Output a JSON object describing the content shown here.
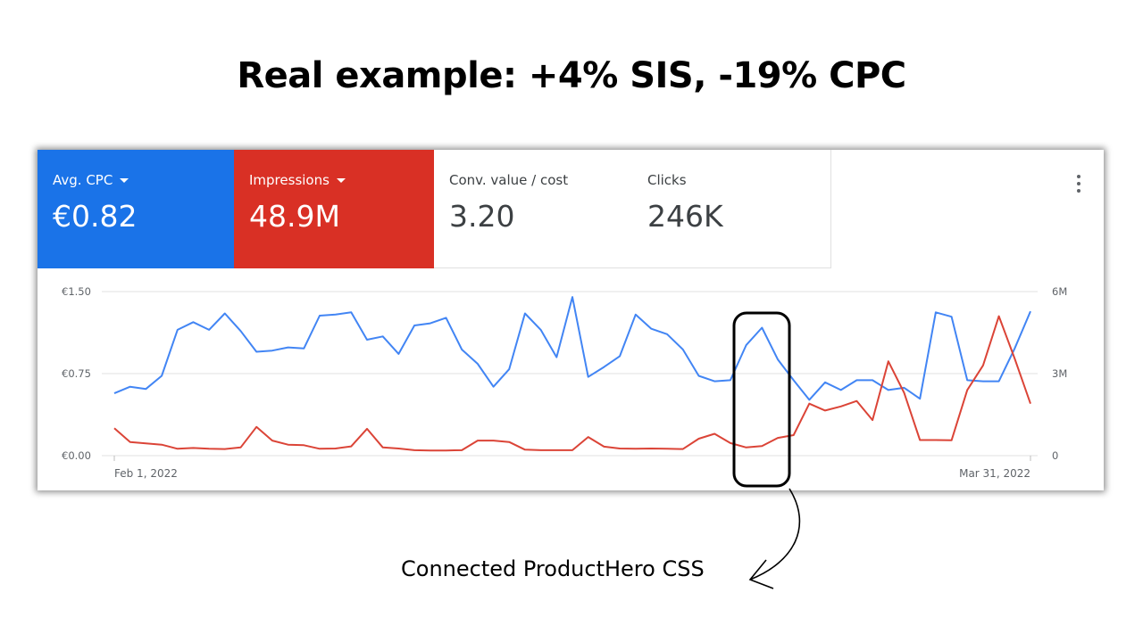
{
  "slide": {
    "title": "Real example: +4% SIS, -19% CPC",
    "annotation": "Connected ProductHero CSS"
  },
  "tiles": [
    {
      "label": "Avg. CPC",
      "value": "€0.82",
      "dropdown": true,
      "color": "#1a73e8"
    },
    {
      "label": "Impressions",
      "value": "48.9M",
      "dropdown": true,
      "color": "#d93025"
    },
    {
      "label": "Conv. value / cost",
      "value": "3.20",
      "dropdown": false
    },
    {
      "label": "Clicks",
      "value": "246K",
      "dropdown": false
    }
  ],
  "menu_icon": "more-vert-icon",
  "chart_data": {
    "type": "line",
    "x_start_label": "Feb 1, 2022",
    "x_end_label": "Mar 31, 2022",
    "grid": true,
    "left_axis": {
      "ticks": [
        "€1.50",
        "€0.75",
        "€0.00"
      ],
      "range": [
        0,
        1.5
      ]
    },
    "right_axis": {
      "ticks": [
        "6M",
        "3M",
        "0"
      ],
      "range": [
        0,
        6000000
      ]
    },
    "series": [
      {
        "name": "Avg. CPC",
        "axis": "left",
        "color": "#4285f4",
        "values": [
          0.57,
          0.63,
          0.61,
          0.73,
          1.15,
          1.22,
          1.15,
          1.3,
          1.14,
          0.95,
          0.96,
          0.99,
          0.98,
          1.28,
          1.29,
          1.31,
          1.06,
          1.09,
          0.93,
          1.19,
          1.21,
          1.26,
          0.97,
          0.84,
          0.63,
          0.79,
          1.3,
          1.15,
          0.9,
          1.45,
          0.72,
          0.81,
          0.91,
          1.29,
          1.16,
          1.11,
          0.97,
          0.73,
          0.68,
          0.69,
          1.01,
          1.17,
          0.88,
          0.69,
          0.51,
          0.67,
          0.6,
          0.69,
          0.69,
          0.6,
          0.62,
          0.52,
          1.31,
          1.27,
          0.69,
          0.68,
          0.68,
          0.98,
          1.32
        ]
      },
      {
        "name": "Impressions",
        "axis": "right",
        "color": "#db4437",
        "values": [
          1000000,
          500000,
          450000,
          400000,
          250000,
          280000,
          250000,
          240000,
          300000,
          1050000,
          550000,
          400000,
          380000,
          250000,
          260000,
          340000,
          980000,
          300000,
          260000,
          200000,
          190000,
          190000,
          200000,
          550000,
          550000,
          500000,
          220000,
          200000,
          200000,
          200000,
          680000,
          330000,
          260000,
          250000,
          260000,
          250000,
          240000,
          620000,
          800000,
          460000,
          300000,
          350000,
          650000,
          750000,
          1900000,
          1650000,
          1800000,
          2000000,
          1300000,
          3450000,
          2300000,
          570000,
          570000,
          560000,
          2400000,
          3300000,
          5100000,
          3550000,
          1900000
        ]
      }
    ]
  }
}
